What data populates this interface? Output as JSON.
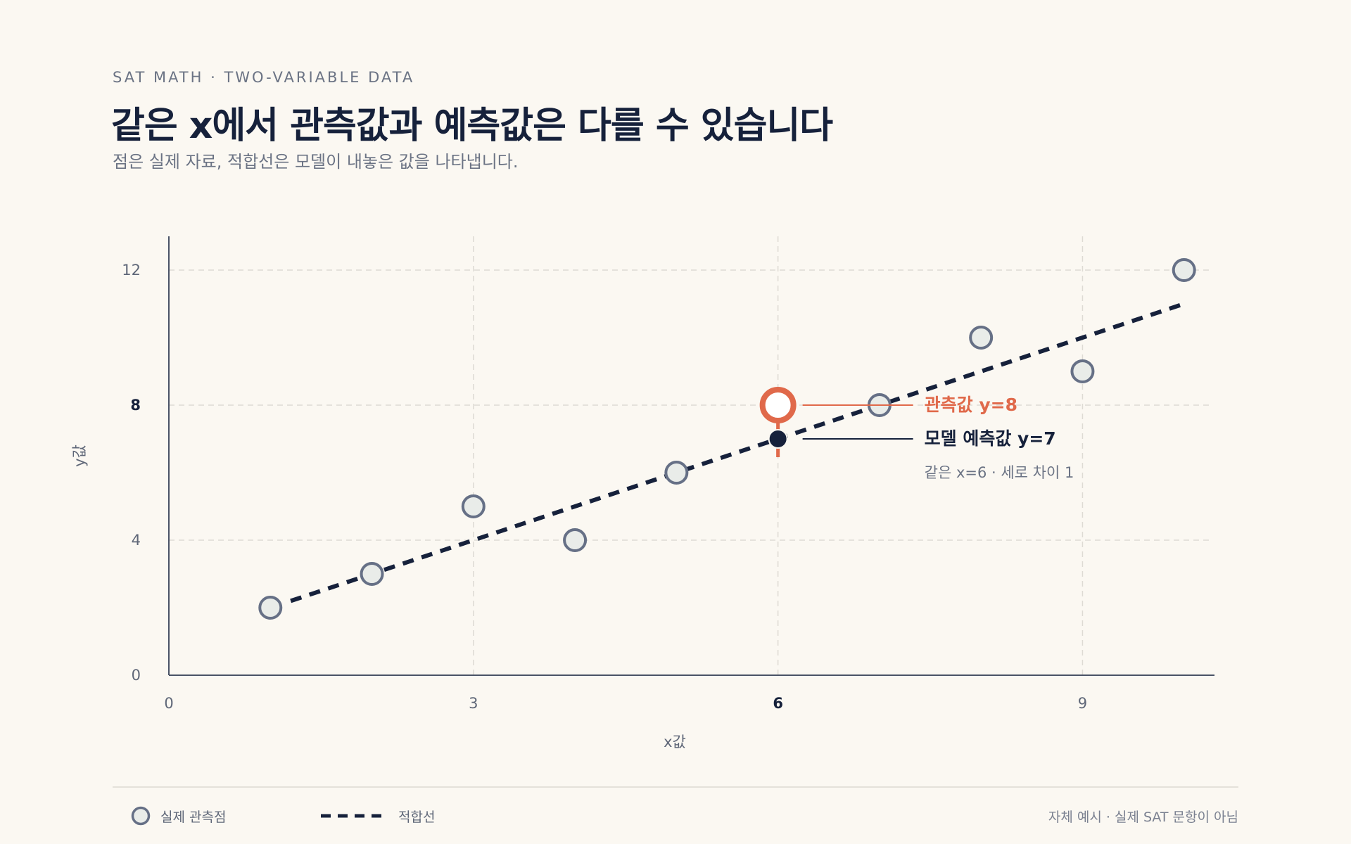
{
  "header": {
    "kicker": "SAT MATH · TWO-VARIABLE DATA",
    "title": "같은 x에서 관측값과 예측값은 다를 수 있습니다",
    "subtitle": "점은 실제 자료, 적합선은 모델이 내놓은 값을 나타냅니다."
  },
  "chart_data": {
    "type": "scatter",
    "xlabel": "x값",
    "ylabel": "y값",
    "xlim": [
      0,
      10.3
    ],
    "ylim": [
      0,
      13
    ],
    "xticks": [
      0,
      3,
      6,
      9
    ],
    "yticks": [
      0,
      4,
      8,
      12
    ],
    "grid": true,
    "points": [
      {
        "x": 1,
        "y": 2
      },
      {
        "x": 2,
        "y": 3
      },
      {
        "x": 3,
        "y": 5
      },
      {
        "x": 4,
        "y": 4
      },
      {
        "x": 5,
        "y": 6
      },
      {
        "x": 6,
        "y": 8
      },
      {
        "x": 7,
        "y": 8
      },
      {
        "x": 8,
        "y": 10
      },
      {
        "x": 9,
        "y": 9
      },
      {
        "x": 10,
        "y": 12
      }
    ],
    "fit_line": {
      "slope": 1,
      "intercept": 1,
      "x_range": [
        1.2,
        10
      ]
    },
    "highlight": {
      "x": 6,
      "observed": 8,
      "predicted": 7,
      "observed_label": "관측값 y=8",
      "predicted_label": "모델 예측값 y=7",
      "note": "같은 x=6 · 세로 차이 1"
    },
    "legend": [
      {
        "label": "실제 관측점",
        "marker": "circle"
      },
      {
        "label": "적합선",
        "marker": "dashed-line"
      }
    ]
  },
  "colors": {
    "background": "#fbf8f2",
    "accent": "#e0694a",
    "navy": "#16213b",
    "point_fill": "#e9ece9",
    "point_stroke": "#667086",
    "grid": "#dedbd4"
  },
  "footer": {
    "note": "자체 예시 · 실제 SAT 문항이 아님"
  }
}
